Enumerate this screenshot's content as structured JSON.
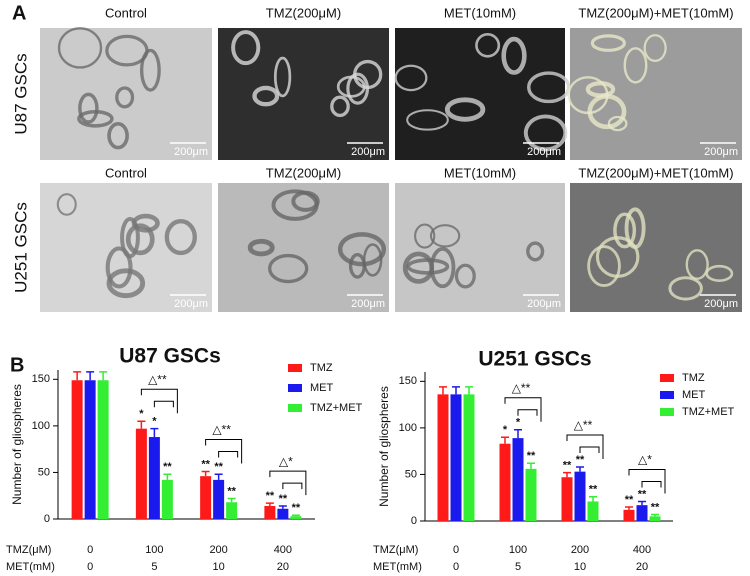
{
  "panel_a": {
    "label": "A",
    "rows": [
      {
        "label": "U87 GSCs",
        "titles": [
          "Control",
          "TMZ(200μM)",
          "MET(10mM)",
          "TMZ(200μM)+MET(10mM)"
        ],
        "scale_labels": [
          "200μm",
          "200μm",
          "200μm",
          "200μm"
        ]
      },
      {
        "label": "U251 GSCs",
        "titles": [
          "Control",
          "TMZ(200μM)",
          "MET(10mM)",
          "TMZ(200μM)+MET(10mM)"
        ],
        "scale_labels": [
          "200μm",
          "200μm",
          "200μm",
          "200μm"
        ]
      }
    ]
  },
  "panel_b": {
    "label": "B"
  },
  "chart_data": [
    {
      "type": "bar",
      "title": "U87 GSCs",
      "y_label": "Number of gliospheres",
      "categories": [
        "0",
        "100",
        "200",
        "400"
      ],
      "category_label": "TMZ(μM)",
      "categories2": [
        "0",
        "5",
        "10",
        "20"
      ],
      "category2_label": "MET(mM)",
      "series": [
        {
          "name": "TMZ",
          "color": "#ff1a1a",
          "values": [
            149,
            97,
            46,
            14
          ],
          "errors": [
            9,
            8,
            5,
            3
          ],
          "significance": [
            null,
            "*",
            "**",
            "**"
          ]
        },
        {
          "name": "MET",
          "color": "#1a1aee",
          "values": [
            149,
            88,
            42,
            11
          ],
          "errors": [
            9,
            9,
            6,
            3
          ],
          "significance": [
            null,
            "*",
            "**",
            "**"
          ]
        },
        {
          "name": "TMZ+MET",
          "color": "#33ee33",
          "values": [
            149,
            42,
            18,
            3
          ],
          "errors": [
            9,
            6,
            4,
            1
          ],
          "significance": [
            null,
            "**",
            "**",
            "**"
          ]
        }
      ],
      "comparisons": [
        null,
        "△**",
        "△**",
        "△*"
      ],
      "ylim": [
        0,
        160
      ],
      "yticks": [
        0,
        50,
        100,
        150
      ],
      "legend": "upper right"
    },
    {
      "type": "bar",
      "title": "U251 GSCs",
      "y_label": "Number of gliospheres",
      "categories": [
        "0",
        "100",
        "200",
        "400"
      ],
      "category_label": "TMZ(μM)",
      "categories2": [
        "0",
        "5",
        "10",
        "20"
      ],
      "category2_label": "MET(mM)",
      "series": [
        {
          "name": "TMZ",
          "color": "#ff1a1a",
          "values": [
            136,
            83,
            47,
            12
          ],
          "errors": [
            8,
            7,
            5,
            3
          ],
          "significance": [
            null,
            "*",
            "**",
            "**"
          ]
        },
        {
          "name": "MET",
          "color": "#1a1aee",
          "values": [
            136,
            89,
            53,
            17
          ],
          "errors": [
            8,
            9,
            5,
            4
          ],
          "significance": [
            null,
            "*",
            "**",
            "**"
          ]
        },
        {
          "name": "TMZ+MET",
          "color": "#33ee33",
          "values": [
            136,
            56,
            21,
            5
          ],
          "errors": [
            8,
            6,
            5,
            2
          ],
          "significance": [
            null,
            "**",
            "**",
            "**"
          ]
        }
      ],
      "comparisons": [
        null,
        "△**",
        "△**",
        "△*"
      ],
      "ylim": [
        0,
        160
      ],
      "yticks": [
        0,
        50,
        100,
        150
      ],
      "legend": "upper right"
    }
  ]
}
